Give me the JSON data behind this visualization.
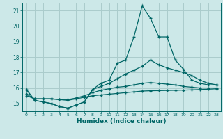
{
  "xlabel": "Humidex (Indice chaleur)",
  "background_color": "#cce8e8",
  "grid_color": "#aacccc",
  "line_color": "#006666",
  "xlim": [
    -0.5,
    23.5
  ],
  "ylim": [
    14.5,
    21.5
  ],
  "yticks": [
    15,
    16,
    17,
    18,
    19,
    20,
    21
  ],
  "xticks": [
    0,
    1,
    2,
    3,
    4,
    5,
    6,
    7,
    8,
    9,
    10,
    11,
    12,
    13,
    14,
    15,
    16,
    17,
    18,
    19,
    20,
    21,
    22,
    23
  ],
  "series": [
    [
      15.9,
      15.2,
      15.1,
      15.0,
      14.8,
      14.7,
      14.9,
      15.1,
      15.9,
      16.3,
      16.5,
      17.6,
      17.8,
      19.3,
      21.3,
      20.5,
      19.3,
      19.3,
      17.8,
      17.2,
      16.5,
      16.3,
      16.2,
      16.2
    ],
    [
      15.9,
      15.2,
      15.1,
      15.0,
      14.8,
      14.7,
      14.9,
      15.1,
      15.9,
      16.1,
      16.3,
      16.6,
      16.9,
      17.15,
      17.4,
      17.8,
      17.5,
      17.3,
      17.15,
      17.0,
      16.8,
      16.5,
      16.3,
      16.2
    ],
    [
      15.6,
      15.3,
      15.3,
      15.3,
      15.25,
      15.25,
      15.35,
      15.5,
      15.7,
      15.85,
      15.95,
      16.05,
      16.1,
      16.2,
      16.3,
      16.35,
      16.3,
      16.25,
      16.2,
      16.1,
      16.05,
      16.0,
      16.0,
      16.0
    ],
    [
      15.5,
      15.3,
      15.3,
      15.3,
      15.25,
      15.2,
      15.3,
      15.4,
      15.5,
      15.55,
      15.6,
      15.65,
      15.7,
      15.75,
      15.8,
      15.82,
      15.83,
      15.84,
      15.85,
      15.86,
      15.88,
      15.9,
      15.92,
      15.95
    ]
  ]
}
